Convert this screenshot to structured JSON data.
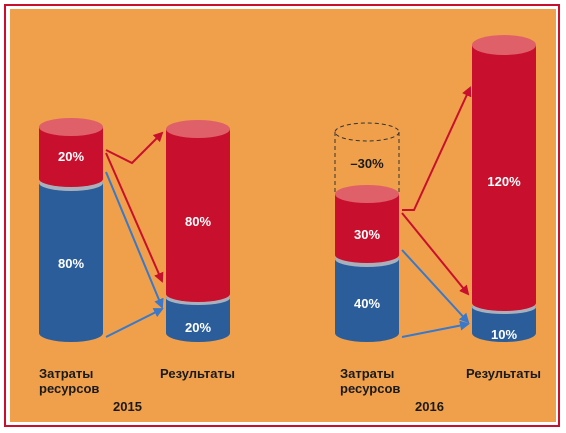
{
  "colors": {
    "background": "#f0a04b",
    "frame": "#c8102e",
    "resource_blue": "#2b5d9b",
    "result_red": "#c8102e",
    "cap_pink": "#e0606a",
    "separator_gray": "#a8b0bc",
    "arrow_red": "#c8102e",
    "arrow_blue": "#3a78c9"
  },
  "groups": [
    {
      "year": "2015",
      "input_label": [
        "Затраты",
        "ресурсов"
      ],
      "output_label": "Результаты",
      "input": {
        "bottom": "80%",
        "top": "20%"
      },
      "output": {
        "bottom": "20%",
        "top": "80%"
      }
    },
    {
      "year": "2016",
      "input_label": [
        "Затраты",
        "ресурсов"
      ],
      "output_label": "Результаты",
      "input": {
        "bottom": "40%",
        "top": "30%",
        "reduction": "–30%"
      },
      "output": {
        "bottom": "10%",
        "top": "120%"
      }
    }
  ]
}
